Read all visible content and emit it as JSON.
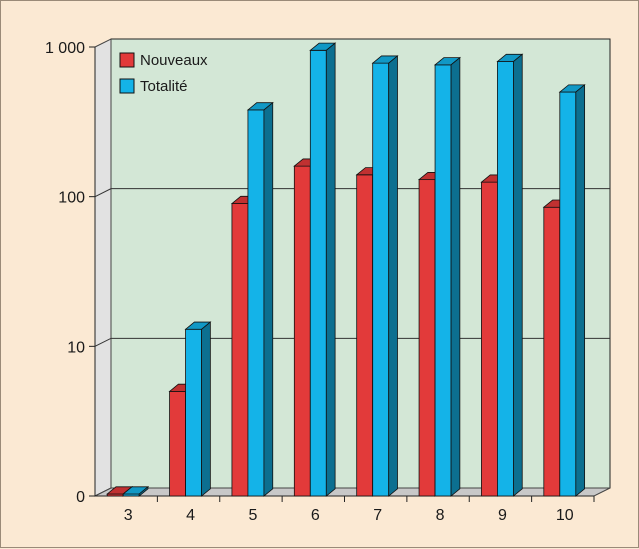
{
  "chart_data": {
    "type": "bar",
    "scale": "log",
    "categories": [
      "3",
      "4",
      "5",
      "6",
      "7",
      "8",
      "9",
      "10"
    ],
    "series": [
      {
        "name": "Nouveaux",
        "color": "#e23a3a",
        "values": [
          1,
          5,
          90,
          160,
          140,
          130,
          125,
          85
        ]
      },
      {
        "name": "Totalité",
        "color": "#14b3e8",
        "values": [
          1,
          13,
          380,
          950,
          780,
          760,
          800,
          500
        ]
      }
    ],
    "y_ticks": [
      {
        "value": 1,
        "label": "0"
      },
      {
        "value": 10,
        "label": "10"
      },
      {
        "value": 100,
        "label": "100"
      },
      {
        "value": 1000,
        "label": "1 000"
      }
    ],
    "ylim": [
      1,
      1000
    ],
    "grid": true,
    "legend_position": "top-left",
    "wall_color": "#d3e7d6",
    "floor_color": "#c8c8c8"
  }
}
